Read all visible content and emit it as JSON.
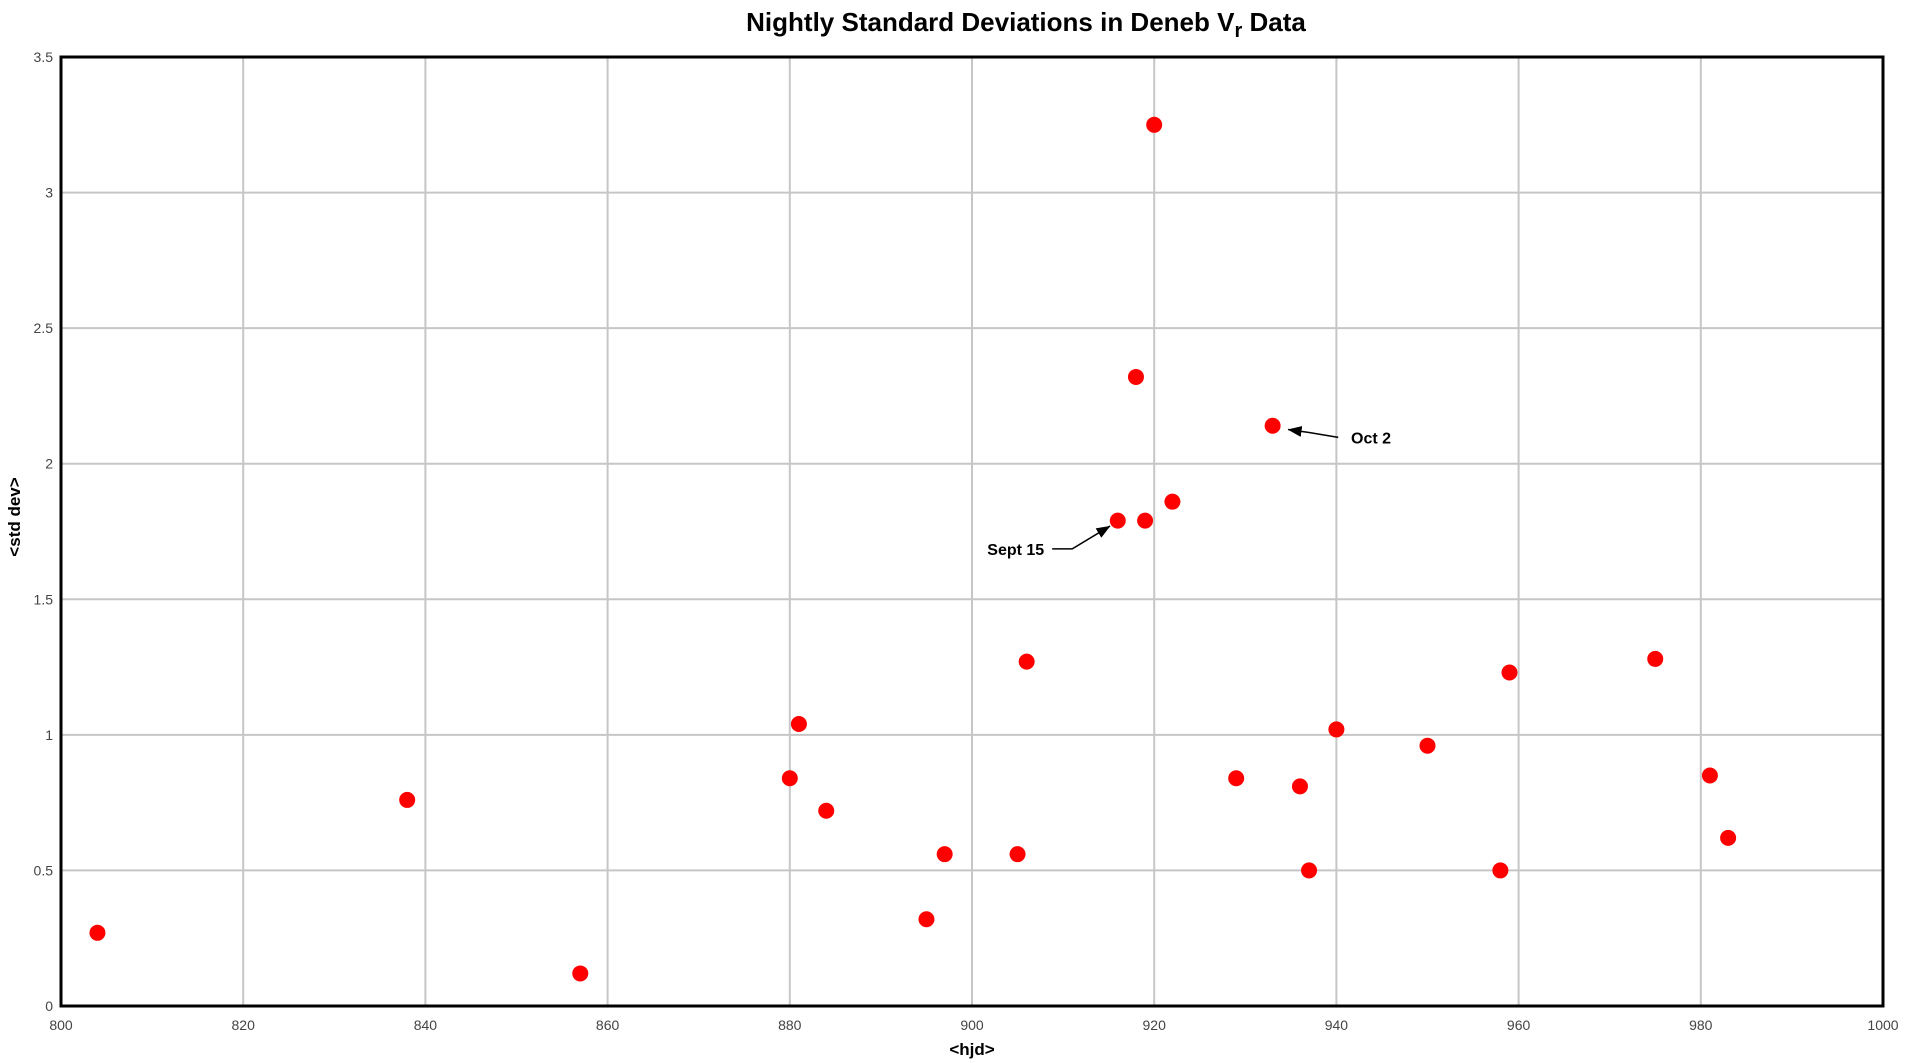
{
  "chart_data": {
    "type": "scatter",
    "title": {
      "prefix": "Nightly Standard Deviations in Deneb V",
      "subscript": "r",
      "suffix": " Data"
    },
    "xlabel": "<hjd>",
    "ylabel": "<std dev>",
    "xlim": [
      800,
      1000
    ],
    "ylim": [
      0,
      3.5
    ],
    "x_ticks": [
      800,
      820,
      840,
      860,
      880,
      900,
      920,
      940,
      960,
      980,
      1000
    ],
    "y_ticks": [
      0,
      0.5,
      1,
      1.5,
      2,
      2.5,
      3,
      3.5
    ],
    "grid": true,
    "legend": "none",
    "marker_color": "#ff0000",
    "grid_color": "#c6c6c6",
    "axis_color": "#000000",
    "tick_label_color": "#444444",
    "points": [
      [
        804,
        0.27
      ],
      [
        838,
        0.76
      ],
      [
        857,
        0.12
      ],
      [
        880,
        0.84
      ],
      [
        881,
        1.04
      ],
      [
        884,
        0.72
      ],
      [
        895,
        0.32
      ],
      [
        897,
        0.56
      ],
      [
        905,
        0.56
      ],
      [
        906,
        1.27
      ],
      [
        916,
        1.79
      ],
      [
        918,
        2.32
      ],
      [
        919,
        1.79
      ],
      [
        920,
        3.25
      ],
      [
        922,
        1.86
      ],
      [
        929,
        0.84
      ],
      [
        933,
        2.14
      ],
      [
        936,
        0.81
      ],
      [
        937,
        0.5
      ],
      [
        940,
        1.02
      ],
      [
        950,
        0.96
      ],
      [
        958,
        0.5
      ],
      [
        959,
        1.23
      ],
      [
        975,
        1.28
      ],
      [
        981,
        0.85
      ],
      [
        983,
        0.62
      ]
    ],
    "annotations": [
      {
        "label": "Sept 15",
        "target_point": [
          916,
          1.79
        ],
        "text_x": 904.8,
        "text_y": 1.686,
        "line": [
          [
            908.8,
            1.686
          ],
          [
            911.0,
            1.686
          ],
          [
            915.15,
            1.77
          ]
        ]
      },
      {
        "label": "Oct 2",
        "target_point": [
          933,
          2.14
        ],
        "text_x": 943.8,
        "text_y": 2.096,
        "line": [
          [
            940.2,
            2.097
          ],
          [
            937.0,
            2.115
          ],
          [
            934.7,
            2.126
          ]
        ]
      }
    ]
  }
}
